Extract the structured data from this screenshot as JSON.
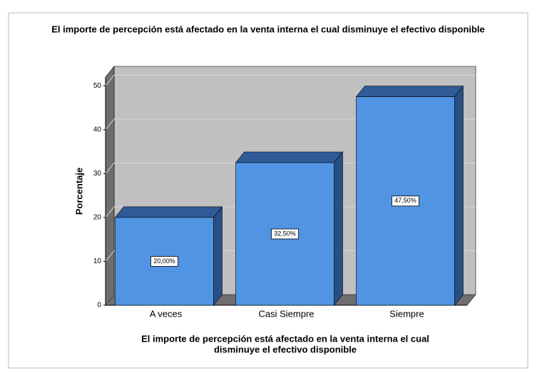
{
  "chart_data": {
    "type": "bar3d",
    "title": "El importe de percepción está afectado en la venta interna el cual disminuye el efectivo disponible",
    "y_label": "Porcentaje",
    "x_label": [
      "El importe de percepción está afectado en la venta interna el cual",
      "disminuye el efectivo disponible"
    ],
    "categories": [
      "A veces",
      "Casi Siempre",
      "Siempre"
    ],
    "values": [
      20,
      32.5,
      47.5
    ],
    "value_labels": [
      "20,00%",
      "32,50%",
      "47,50%"
    ],
    "color": "#5094e3",
    "ylim": [
      0,
      52
    ],
    "yticks": [
      0,
      10,
      20,
      30,
      40,
      50
    ],
    "grid": true
  }
}
